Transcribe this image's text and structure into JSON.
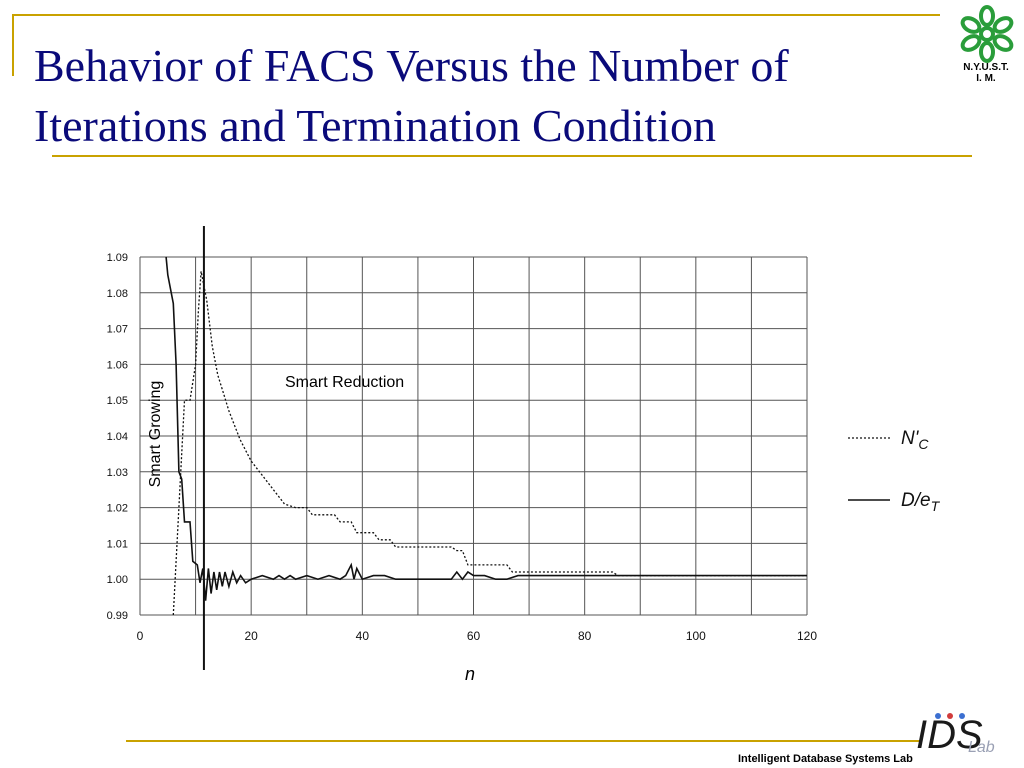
{
  "slide": {
    "title": "Behavior of FACS Versus the Number of Iterations and Termination Condition",
    "logo_text": "N.Y.U.S.T.\nI. M.",
    "footer_text": "Intelligent Database Systems Lab",
    "accent_color": "#c9a200",
    "title_color": "#0a0a7a",
    "logo_color": "#2a9d3a"
  },
  "chart_data": {
    "type": "line",
    "title": "",
    "xlabel": "n",
    "ylabel": "",
    "xlim": [
      0,
      120
    ],
    "ylim": [
      0.99,
      1.09
    ],
    "xticks": [
      0,
      20,
      40,
      60,
      80,
      100,
      120
    ],
    "yticks": [
      0.99,
      1.0,
      1.01,
      1.02,
      1.03,
      1.04,
      1.05,
      1.06,
      1.07,
      1.08,
      1.09
    ],
    "grid": true,
    "legend_position": "right",
    "annotations": {
      "smart_growing": "Smart Growing",
      "smart_reduction": "Smart Reduction",
      "vertical_marker_x": 11.5
    },
    "series": [
      {
        "name": "N'C",
        "style": "dotted",
        "points": [
          [
            6,
            0.99
          ],
          [
            7,
            1.02
          ],
          [
            8,
            1.05
          ],
          [
            9,
            1.05
          ],
          [
            10,
            1.06
          ],
          [
            10.5,
            1.075
          ],
          [
            11,
            1.086
          ],
          [
            12,
            1.078
          ],
          [
            13,
            1.065
          ],
          [
            14,
            1.057
          ],
          [
            15,
            1.052
          ],
          [
            16,
            1.047
          ],
          [
            17,
            1.043
          ],
          [
            18,
            1.039
          ],
          [
            19,
            1.036
          ],
          [
            20,
            1.033
          ],
          [
            22,
            1.029
          ],
          [
            24,
            1.025
          ],
          [
            26,
            1.021
          ],
          [
            28,
            1.02
          ],
          [
            30,
            1.02
          ],
          [
            31,
            1.018
          ],
          [
            35,
            1.018
          ],
          [
            36,
            1.016
          ],
          [
            38,
            1.016
          ],
          [
            39,
            1.013
          ],
          [
            42,
            1.013
          ],
          [
            43,
            1.011
          ],
          [
            45,
            1.011
          ],
          [
            46,
            1.009
          ],
          [
            56,
            1.009
          ],
          [
            57,
            1.008
          ],
          [
            58,
            1.008
          ],
          [
            59,
            1.004
          ],
          [
            66,
            1.004
          ],
          [
            67,
            1.002
          ],
          [
            85,
            1.002
          ],
          [
            86,
            1.001
          ],
          [
            120,
            1.001
          ]
        ]
      },
      {
        "name": "D/eT",
        "style": "solid",
        "points": [
          [
            4.7,
            1.09
          ],
          [
            5,
            1.085
          ],
          [
            6,
            1.077
          ],
          [
            6.5,
            1.06
          ],
          [
            7,
            1.03
          ],
          [
            7.5,
            1.028
          ],
          [
            8,
            1.016
          ],
          [
            9,
            1.016
          ],
          [
            9.5,
            1.005
          ],
          [
            10.3,
            1.004
          ],
          [
            10.8,
            0.999
          ],
          [
            11.3,
            1.003
          ],
          [
            11.8,
            0.994
          ],
          [
            12.3,
            1.003
          ],
          [
            12.8,
            0.996
          ],
          [
            13.3,
            1.002
          ],
          [
            13.8,
            0.997
          ],
          [
            14.3,
            1.002
          ],
          [
            14.8,
            0.998
          ],
          [
            15.3,
            1.002
          ],
          [
            16,
            0.998
          ],
          [
            16.7,
            1.002
          ],
          [
            17.4,
            0.999
          ],
          [
            18.1,
            1.001
          ],
          [
            19,
            0.999
          ],
          [
            20,
            1.0
          ],
          [
            22,
            1.001
          ],
          [
            24,
            1.0
          ],
          [
            25,
            1.001
          ],
          [
            26,
            1.0
          ],
          [
            27,
            1.001
          ],
          [
            28,
            1.0
          ],
          [
            30,
            1.001
          ],
          [
            32,
            1.0
          ],
          [
            34,
            1.001
          ],
          [
            36,
            1.0
          ],
          [
            37,
            1.001
          ],
          [
            38,
            1.004
          ],
          [
            38.5,
            1.0
          ],
          [
            39,
            1.003
          ],
          [
            40,
            1.0
          ],
          [
            42,
            1.001
          ],
          [
            44,
            1.001
          ],
          [
            46,
            1.0
          ],
          [
            50,
            1.0
          ],
          [
            56,
            1.0
          ],
          [
            57,
            1.002
          ],
          [
            58,
            1.0
          ],
          [
            59,
            1.002
          ],
          [
            60,
            1.001
          ],
          [
            62,
            1.001
          ],
          [
            64,
            1.0
          ],
          [
            66,
            1.0
          ],
          [
            68,
            1.001
          ],
          [
            100,
            1.001
          ],
          [
            102,
            1.001
          ],
          [
            120,
            1.001
          ]
        ]
      }
    ],
    "legend": [
      {
        "label": "N'",
        "sub": "C",
        "style": "dotted"
      },
      {
        "label": "D/e",
        "sub": "T",
        "style": "solid"
      }
    ]
  }
}
